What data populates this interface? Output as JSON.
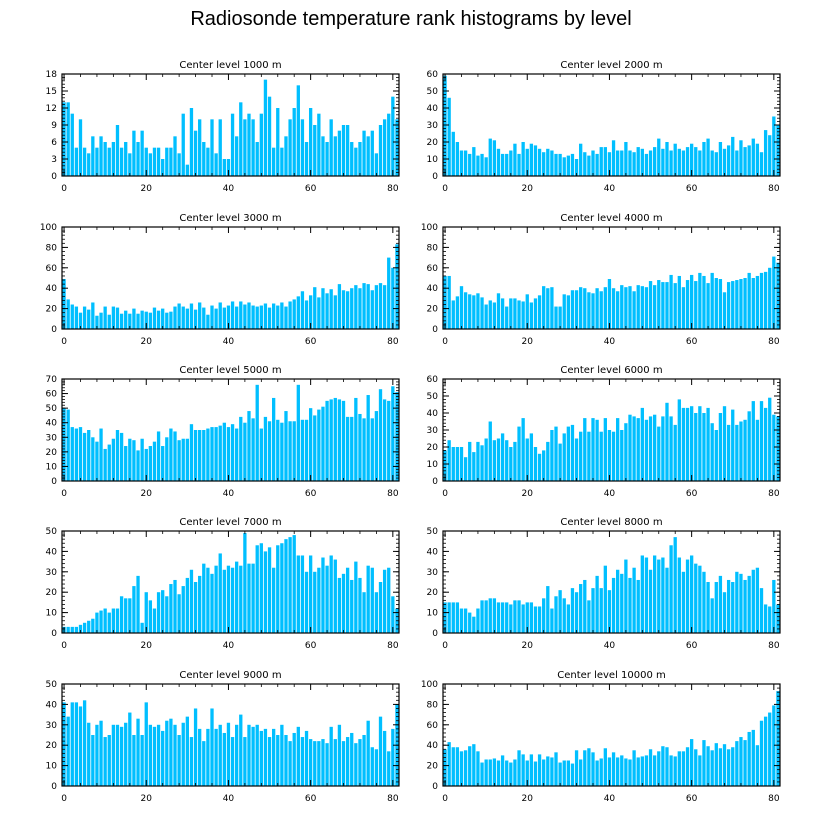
{
  "title": "Radiosonde temperature rank histograms by level",
  "style": {
    "bar_color": "#00bfff",
    "axis_color": "#000000",
    "background": "#ffffff"
  },
  "chart_data": [
    {
      "type": "bar",
      "title": "Center level 1000 m",
      "ylim": [
        0,
        18
      ],
      "yticks": [
        0,
        3,
        6,
        9,
        12,
        15,
        18
      ],
      "xlim": [
        -0.5,
        81.5
      ],
      "xticks": [
        0,
        20,
        40,
        60,
        80
      ],
      "values": [
        13,
        13,
        11,
        5,
        10,
        5,
        4,
        7,
        5,
        7,
        6,
        5,
        6,
        9,
        5,
        6,
        4,
        8,
        6,
        8,
        5,
        4,
        5,
        5,
        3,
        5,
        5,
        7,
        4,
        11,
        2,
        12,
        8,
        10,
        6,
        5,
        10,
        4,
        10,
        3,
        3,
        11,
        7,
        13,
        10,
        11,
        10,
        6,
        11,
        17,
        14,
        5,
        12,
        5,
        7,
        10,
        12,
        16,
        10,
        6,
        12,
        9,
        11,
        7,
        6,
        10,
        7,
        8,
        9,
        9,
        6,
        5,
        6,
        8,
        7,
        8,
        4,
        9,
        10,
        11,
        14,
        10
      ]
    },
    {
      "type": "bar",
      "title": "Center level 2000 m",
      "ylim": [
        0,
        60
      ],
      "yticks": [
        0,
        10,
        20,
        30,
        40,
        50,
        60
      ],
      "xlim": [
        -0.5,
        81.5
      ],
      "xticks": [
        0,
        20,
        40,
        60,
        80
      ],
      "values": [
        59,
        46,
        26,
        20,
        15,
        15,
        13,
        17,
        12,
        13,
        11,
        22,
        21,
        16,
        13,
        13,
        15,
        19,
        13,
        20,
        16,
        19,
        18,
        16,
        14,
        16,
        15,
        13,
        13,
        11,
        12,
        13,
        10,
        19,
        14,
        12,
        15,
        13,
        17,
        17,
        14,
        21,
        15,
        15,
        20,
        15,
        14,
        17,
        16,
        13,
        15,
        17,
        22,
        16,
        20,
        15,
        19,
        16,
        15,
        17,
        19,
        17,
        15,
        20,
        22,
        15,
        14,
        20,
        16,
        18,
        23,
        15,
        21,
        17,
        18,
        22,
        19,
        14,
        27,
        24,
        35,
        30
      ]
    },
    {
      "type": "bar",
      "title": "Center level 3000 m",
      "ylim": [
        0,
        100
      ],
      "yticks": [
        0,
        20,
        40,
        60,
        80,
        100
      ],
      "xlim": [
        -0.5,
        81.5
      ],
      "xticks": [
        0,
        20,
        40,
        60,
        80
      ],
      "values": [
        49,
        29,
        24,
        22,
        16,
        22,
        19,
        26,
        13,
        16,
        22,
        14,
        22,
        21,
        15,
        18,
        15,
        20,
        15,
        18,
        17,
        16,
        21,
        18,
        20,
        16,
        17,
        22,
        25,
        22,
        20,
        25,
        19,
        26,
        21,
        14,
        23,
        20,
        26,
        21,
        23,
        27,
        22,
        27,
        24,
        26,
        23,
        22,
        23,
        25,
        21,
        25,
        23,
        26,
        22,
        27,
        29,
        32,
        37,
        28,
        33,
        41,
        31,
        40,
        35,
        39,
        33,
        44,
        38,
        37,
        40,
        43,
        40,
        45,
        44,
        38,
        43,
        45,
        43,
        70,
        60,
        83
      ]
    },
    {
      "type": "bar",
      "title": "Center level 4000 m",
      "ylim": [
        0,
        100
      ],
      "yticks": [
        0,
        20,
        40,
        60,
        80,
        100
      ],
      "xlim": [
        -0.5,
        81.5
      ],
      "xticks": [
        0,
        20,
        40,
        60,
        80
      ],
      "values": [
        52,
        52,
        28,
        32,
        42,
        36,
        34,
        33,
        35,
        31,
        24,
        28,
        26,
        35,
        30,
        22,
        30,
        30,
        28,
        27,
        34,
        26,
        30,
        33,
        42,
        40,
        41,
        22,
        22,
        34,
        33,
        38,
        38,
        41,
        40,
        36,
        35,
        40,
        37,
        41,
        49,
        40,
        37,
        43,
        41,
        42,
        37,
        43,
        42,
        41,
        47,
        43,
        48,
        46,
        46,
        53,
        45,
        52,
        41,
        48,
        53,
        47,
        55,
        52,
        45,
        55,
        50,
        49,
        36,
        46,
        47,
        48,
        49,
        50,
        55,
        50,
        52,
        55,
        56,
        60,
        71,
        65
      ]
    },
    {
      "type": "bar",
      "title": "Center level 5000 m",
      "ylim": [
        0,
        70
      ],
      "yticks": [
        0,
        10,
        20,
        30,
        40,
        50,
        60,
        70
      ],
      "xlim": [
        -0.5,
        81.5
      ],
      "xticks": [
        0,
        20,
        40,
        60,
        80
      ],
      "values": [
        50,
        49,
        37,
        36,
        37,
        33,
        35,
        30,
        27,
        36,
        22,
        25,
        29,
        35,
        33,
        24,
        29,
        28,
        21,
        29,
        22,
        24,
        27,
        34,
        24,
        30,
        36,
        34,
        28,
        29,
        29,
        39,
        35,
        35,
        35,
        36,
        37,
        37,
        38,
        40,
        37,
        39,
        36,
        44,
        40,
        48,
        43,
        66,
        36,
        44,
        41,
        57,
        42,
        40,
        48,
        41,
        41,
        66,
        42,
        42,
        50,
        45,
        49,
        51,
        55,
        56,
        57,
        56,
        55,
        44,
        44,
        57,
        46,
        43,
        59,
        43,
        48,
        63,
        56,
        55,
        65,
        61
      ]
    },
    {
      "type": "bar",
      "title": "Center level 6000 m",
      "ylim": [
        0,
        60
      ],
      "yticks": [
        0,
        10,
        20,
        30,
        40,
        50,
        60
      ],
      "xlim": [
        -0.5,
        81.5
      ],
      "xticks": [
        0,
        20,
        40,
        60,
        80
      ],
      "values": [
        18,
        24,
        20,
        20,
        20,
        14,
        23,
        17,
        23,
        21,
        25,
        35,
        24,
        25,
        28,
        24,
        20,
        23,
        32,
        37,
        25,
        28,
        20,
        16,
        18,
        23,
        30,
        32,
        22,
        28,
        32,
        33,
        25,
        29,
        37,
        29,
        37,
        36,
        29,
        37,
        30,
        29,
        37,
        30,
        34,
        39,
        38,
        37,
        43,
        36,
        38,
        39,
        32,
        38,
        46,
        38,
        33,
        48,
        43,
        43,
        44,
        40,
        44,
        40,
        43,
        34,
        30,
        40,
        44,
        33,
        42,
        33,
        35,
        36,
        41,
        47,
        36,
        47,
        43,
        49,
        39,
        38
      ]
    },
    {
      "type": "bar",
      "title": "Center level 7000 m",
      "ylim": [
        0,
        50
      ],
      "yticks": [
        0,
        10,
        20,
        30,
        40,
        50
      ],
      "xlim": [
        -0.5,
        81.5
      ],
      "xticks": [
        0,
        20,
        40,
        60,
        80
      ],
      "values": [
        3,
        3,
        3,
        3,
        4,
        5,
        6,
        7,
        10,
        11,
        12,
        10,
        12,
        12,
        18,
        17,
        17,
        23,
        28,
        5,
        20,
        16,
        12,
        20,
        21,
        18,
        24,
        26,
        19,
        23,
        27,
        31,
        25,
        28,
        34,
        32,
        29,
        33,
        39,
        31,
        33,
        32,
        35,
        33,
        49,
        34,
        34,
        43,
        44,
        40,
        42,
        32,
        43,
        44,
        46,
        47,
        48,
        38,
        38,
        30,
        38,
        30,
        32,
        37,
        33,
        38,
        36,
        27,
        29,
        32,
        26,
        35,
        27,
        20,
        33,
        32,
        20,
        25,
        31,
        32,
        18,
        12
      ]
    },
    {
      "type": "bar",
      "title": "Center level 8000 m",
      "ylim": [
        0,
        50
      ],
      "yticks": [
        0,
        10,
        20,
        30,
        40,
        50
      ],
      "xlim": [
        -0.5,
        81.5
      ],
      "xticks": [
        0,
        20,
        40,
        60,
        80
      ],
      "values": [
        15,
        15,
        15,
        15,
        12,
        12,
        10,
        8,
        12,
        16,
        16,
        17,
        17,
        15,
        15,
        15,
        14,
        16,
        16,
        14,
        15,
        15,
        13,
        13,
        17,
        23,
        12,
        18,
        21,
        17,
        14,
        22,
        20,
        24,
        26,
        16,
        22,
        28,
        22,
        33,
        21,
        27,
        31,
        29,
        36,
        27,
        32,
        26,
        38,
        37,
        31,
        38,
        36,
        37,
        32,
        43,
        47,
        37,
        30,
        36,
        38,
        34,
        33,
        30,
        25,
        17,
        25,
        28,
        20,
        26,
        25,
        30,
        29,
        26,
        28,
        31,
        32,
        22,
        14,
        13,
        26,
        14
      ]
    },
    {
      "type": "bar",
      "title": "Center level 9000 m",
      "ylim": [
        0,
        50
      ],
      "yticks": [
        0,
        10,
        20,
        30,
        40,
        50
      ],
      "xlim": [
        -0.5,
        81.5
      ],
      "xticks": [
        0,
        20,
        40,
        60,
        80
      ],
      "values": [
        41,
        34,
        41,
        41,
        39,
        42,
        31,
        25,
        30,
        32,
        24,
        25,
        30,
        30,
        29,
        31,
        36,
        25,
        33,
        25,
        41,
        30,
        29,
        30,
        27,
        32,
        33,
        30,
        25,
        31,
        34,
        24,
        38,
        28,
        22,
        28,
        38,
        28,
        30,
        26,
        31,
        24,
        30,
        35,
        24,
        30,
        29,
        30,
        27,
        28,
        24,
        28,
        25,
        30,
        25,
        22,
        26,
        29,
        24,
        27,
        23,
        22,
        22,
        23,
        21,
        29,
        23,
        30,
        22,
        24,
        26,
        21,
        23,
        25,
        32,
        19,
        18,
        34,
        27,
        17,
        28,
        40
      ]
    },
    {
      "type": "bar",
      "title": "Center level 10000 m",
      "ylim": [
        0,
        100
      ],
      "yticks": [
        0,
        20,
        40,
        60,
        80,
        100
      ],
      "xlim": [
        -0.5,
        81.5
      ],
      "xticks": [
        0,
        20,
        40,
        60,
        80
      ],
      "values": [
        36,
        43,
        38,
        38,
        34,
        35,
        39,
        41,
        34,
        23,
        26,
        26,
        27,
        25,
        30,
        25,
        23,
        26,
        35,
        31,
        25,
        31,
        24,
        31,
        26,
        29,
        28,
        33,
        23,
        25,
        25,
        22,
        35,
        26,
        35,
        37,
        33,
        25,
        27,
        37,
        28,
        33,
        28,
        30,
        27,
        26,
        35,
        28,
        29,
        30,
        36,
        30,
        34,
        39,
        38,
        30,
        29,
        34,
        34,
        38,
        46,
        36,
        30,
        45,
        39,
        35,
        42,
        37,
        41,
        36,
        38,
        44,
        48,
        45,
        53,
        55,
        40,
        64,
        68,
        72,
        79,
        93
      ]
    }
  ]
}
